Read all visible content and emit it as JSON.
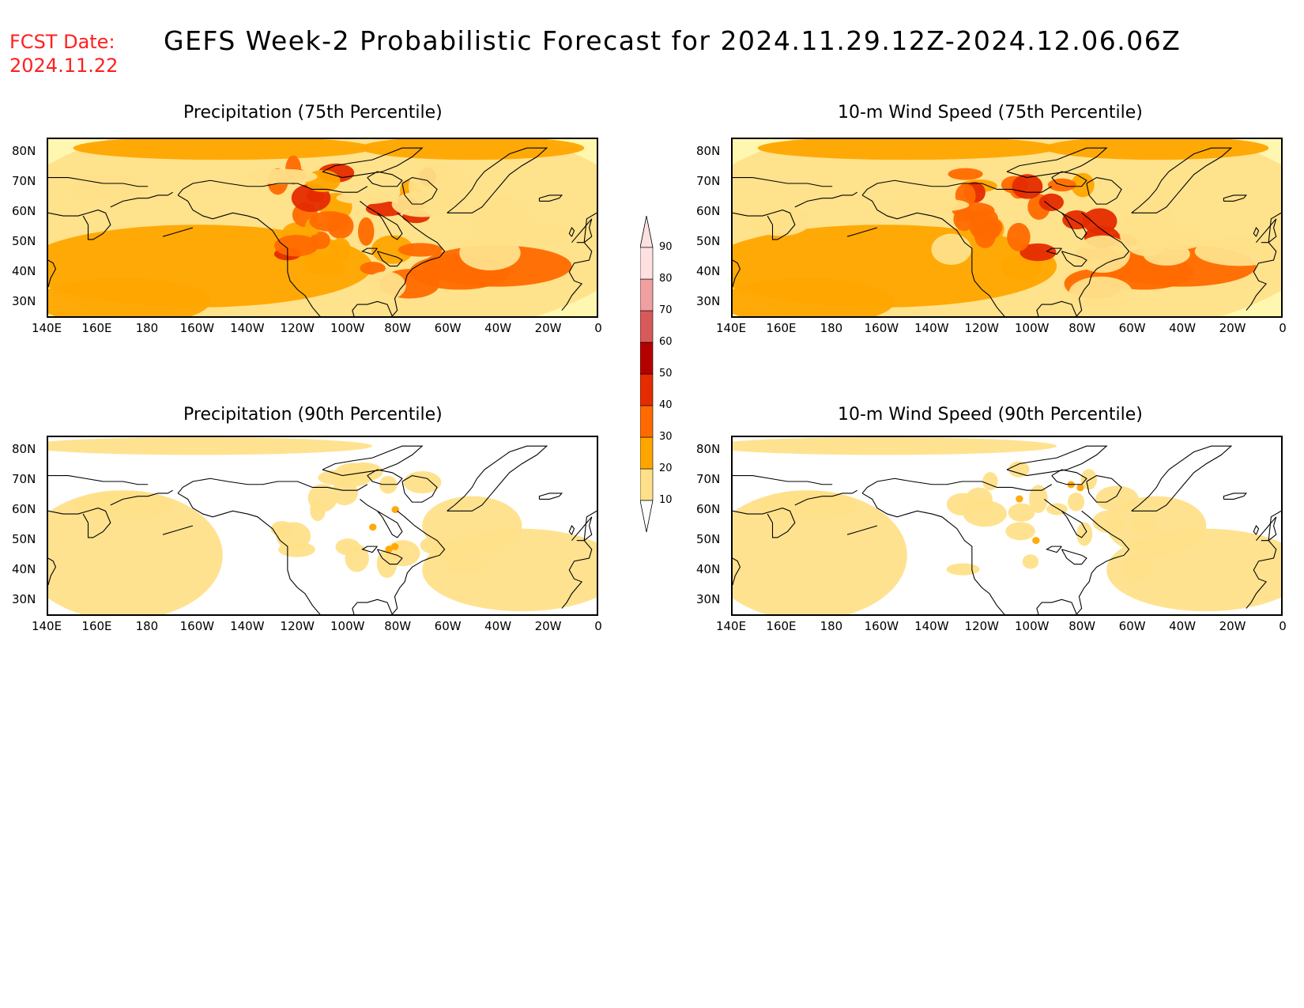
{
  "header": {
    "fcst_label": "FCST Date:",
    "fcst_date": "2024.11.22",
    "title": "GEFS Week-2 Probabilistic Forecast for 2024.11.29.12Z-2024.12.06.06Z"
  },
  "panels": [
    {
      "title": "Precipitation (75th Percentile)",
      "intensity": "high"
    },
    {
      "title": "10-m Wind Speed (75th Percentile)",
      "intensity": "high"
    },
    {
      "title": "Precipitation (90th Percentile)",
      "intensity": "low"
    },
    {
      "title": "10-m Wind Speed (90th Percentile)",
      "intensity": "low"
    }
  ],
  "lat_labels": [
    "80N",
    "70N",
    "60N",
    "50N",
    "40N",
    "30N"
  ],
  "lon_labels": [
    "140E",
    "160E",
    "180",
    "160W",
    "140W",
    "120W",
    "100W",
    "80W",
    "60W",
    "40W",
    "20W",
    "0"
  ],
  "colorbar": {
    "levels": [
      "10",
      "20",
      "30",
      "40",
      "50",
      "60",
      "70",
      "80",
      "90"
    ],
    "colors": [
      "#fff7b0",
      "#ffe08a",
      "#ffa500",
      "#ff6a00",
      "#e52b00",
      "#b50000",
      "#d65a5a",
      "#f0a0a0",
      "#fde0e0"
    ]
  }
}
